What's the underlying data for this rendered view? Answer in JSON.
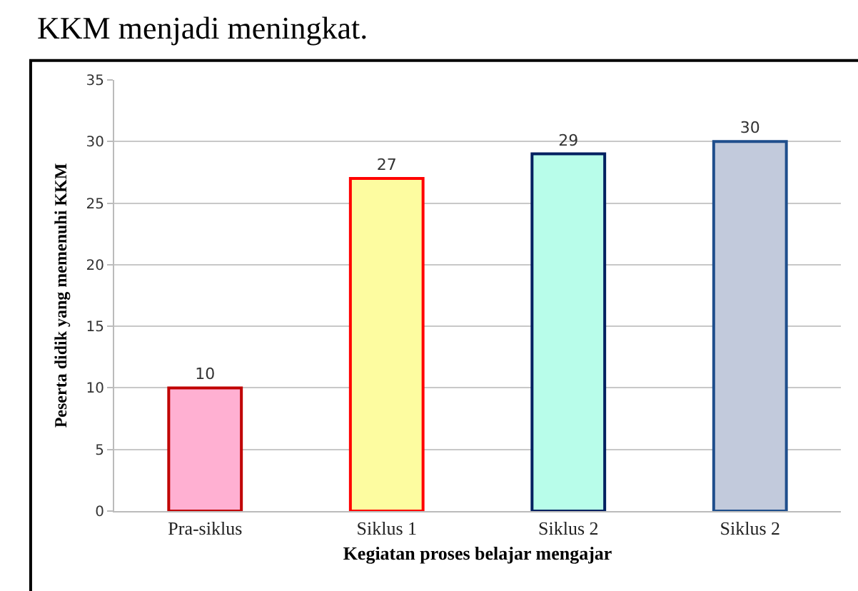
{
  "chart_data": {
    "type": "bar",
    "categories": [
      "Pra-siklus",
      "Siklus 1",
      "Siklus 2",
      "Siklus 2"
    ],
    "values": [
      10,
      27,
      29,
      30
    ],
    "colors": [
      "#ffb0d2",
      "#fdfca0",
      "#b8fdea",
      "#c2cadc"
    ],
    "xlabel": "Kegiatan proses belajar mengajar",
    "ylabel": "Peserta didik yang memenuhi KKM",
    "annotations": [
      "KKM menjadi meningkat."
    ],
    "ylim": [
      0,
      35
    ],
    "yticks": [
      0,
      5,
      10,
      15,
      20,
      25,
      30,
      35
    ],
    "grid": "y",
    "data_labels": true
  }
}
